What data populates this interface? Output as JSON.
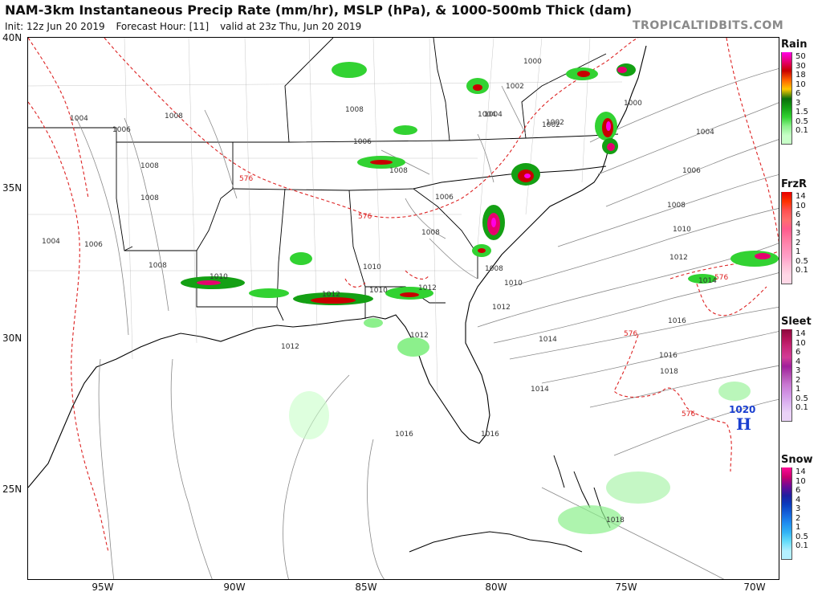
{
  "header": {
    "title": "NAM-3km Instantaneous Precip Rate (mm/hr), MSLP (hPa), & 1000-500mb Thick (dam)",
    "init": "Init: 12z Jun 20 2019",
    "forecast_hour": "Forecast Hour: [11]",
    "valid": "valid at 23z Thu, Jun 20 2019",
    "brand": "TROPICALTIDBITS.COM"
  },
  "axes": {
    "lat_labels": [
      "40N",
      "35N",
      "30N",
      "25N"
    ],
    "lon_labels": [
      "95W",
      "90W",
      "85W",
      "80W",
      "75W",
      "70W"
    ]
  },
  "isobar_labels": [
    "1004",
    "1006",
    "1008",
    "1008",
    "1008",
    "1004",
    "1006",
    "1008",
    "1010",
    "1010",
    "1010",
    "1012",
    "1012",
    "1014",
    "1016",
    "1008",
    "1006",
    "1004",
    "1002",
    "1000",
    "1000",
    "1002",
    "1004",
    "1006",
    "1008",
    "1010",
    "1012",
    "1014",
    "1016",
    "1018",
    "1018",
    "1012",
    "1006",
    "1008",
    "1008",
    "1004",
    "1002",
    "1008",
    "1010",
    "1012",
    "1012",
    "1014",
    "1016",
    "1016"
  ],
  "thickness_labels": [
    "576",
    "576",
    "576",
    "576",
    "576"
  ],
  "high_pressure": {
    "value": "1020",
    "letter": "H"
  },
  "legends": [
    {
      "title": "Rain",
      "values": [
        "50",
        "30",
        "18",
        "10",
        "6",
        "3",
        "1.5",
        "0.5",
        "0.1"
      ],
      "colors": [
        "#ff00e6",
        "#e6006e",
        "#c80000",
        "#ff6400",
        "#ffc800",
        "#0a6e0a",
        "#14a014",
        "#32d232",
        "#8cf08c",
        "#c8ffc8"
      ]
    },
    {
      "title": "FrzR",
      "values": [
        "14",
        "10",
        "6",
        "4",
        "3",
        "2",
        "1",
        "0.5",
        "0.1"
      ],
      "colors": [
        "#e60000",
        "#ff3200",
        "#ff5050",
        "#ff6e6e",
        "#ff5a8c",
        "#ff78a0",
        "#ff8cb4",
        "#ffa0c8",
        "#ffbed7",
        "#ffd7e6"
      ]
    },
    {
      "title": "Sleet",
      "values": [
        "14",
        "10",
        "6",
        "4",
        "3",
        "2",
        "1",
        "0.5",
        "0.1"
      ],
      "colors": [
        "#8c0a3c",
        "#b4145a",
        "#c8287a",
        "#d23c96",
        "#a01e9b",
        "#b450b4",
        "#c878d2",
        "#d296e6",
        "#dcb4f0",
        "#ead2f7"
      ]
    },
    {
      "title": "Snow",
      "values": [
        "14",
        "10",
        "6",
        "4",
        "3",
        "2",
        "1",
        "0.5",
        "0.1"
      ],
      "colors": [
        "#ff0a96",
        "#c8006e",
        "#6e0a96",
        "#1e1ea0",
        "#0a3cbe",
        "#1464dc",
        "#1e8cf0",
        "#32b4f5",
        "#64dcfa",
        "#b4f0ff"
      ]
    }
  ]
}
